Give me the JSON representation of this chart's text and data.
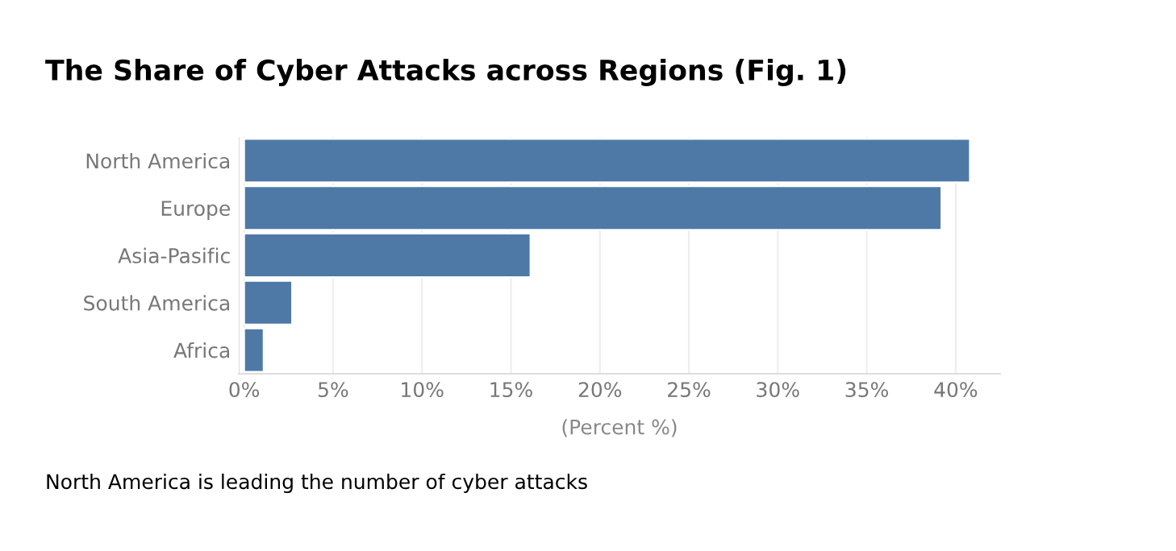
{
  "chart_data": {
    "type": "bar",
    "orientation": "horizontal",
    "title": "The Share of Cyber Attacks across Regions (Fig. 1)",
    "xlabel": "(Percent %)",
    "categories": [
      "North America",
      "Europe",
      "Asia-Pasific",
      "South America",
      "Africa"
    ],
    "values": [
      40.8,
      39.2,
      16.1,
      2.7,
      1.1
    ],
    "color": "#4e79a7",
    "xlim": [
      -0.3,
      42.5
    ],
    "xticks": [
      {
        "value": 0,
        "label": "0%"
      },
      {
        "value": 5,
        "label": "5%"
      },
      {
        "value": 10,
        "label": "10%"
      },
      {
        "value": 15,
        "label": "15%"
      },
      {
        "value": 20,
        "label": "20%"
      },
      {
        "value": 25,
        "label": "25%"
      },
      {
        "value": 30,
        "label": "30%"
      },
      {
        "value": 35,
        "label": "35%"
      },
      {
        "value": 40,
        "label": "40%"
      }
    ],
    "grid": "x",
    "annotations": [
      "North America is leading the number of cyber attacks"
    ]
  }
}
